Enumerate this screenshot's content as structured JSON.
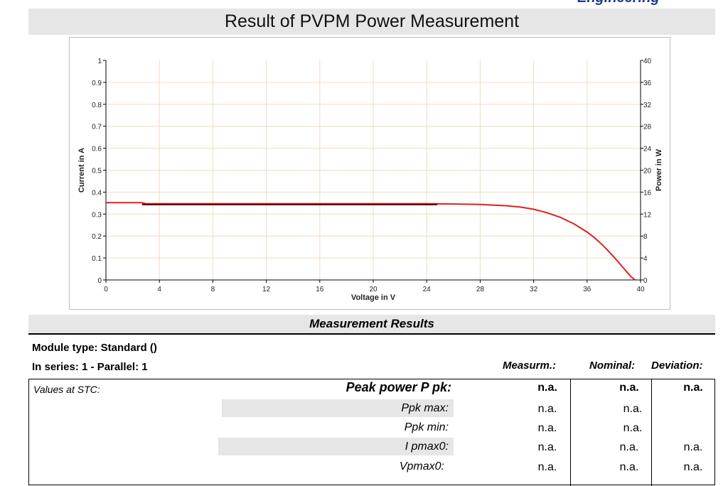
{
  "header": {
    "logo_text": "Engineering"
  },
  "title": "Result of PVPM Power Measurement",
  "chart_data": {
    "type": "line",
    "xlabel": "Voltage in V",
    "ylabel_left": "Current in A",
    "ylabel_right": "Power in W",
    "xlim": [
      0,
      40
    ],
    "ylim_left": [
      0,
      1
    ],
    "ylim_right": [
      0,
      40
    ],
    "x_ticks": [
      "0",
      "4",
      "8",
      "12",
      "16",
      "20",
      "24",
      "28",
      "32",
      "36",
      "40"
    ],
    "y_ticks_left": [
      "0",
      "0.1",
      "0.2",
      "0.3",
      "0.4",
      "0.5",
      "0.6",
      "0.7",
      "0.8",
      "0.9",
      "1"
    ],
    "y_ticks_right": [
      "0",
      "4",
      "8",
      "12",
      "16",
      "20",
      "24",
      "28",
      "32",
      "36",
      "40"
    ],
    "grid": true,
    "series": [
      {
        "color": "#e02020",
        "axis": "left",
        "x": [
          0,
          2.7,
          3.0,
          10,
          20,
          24,
          26,
          28,
          30,
          31,
          32,
          33,
          34,
          35,
          36,
          36.5,
          37,
          37.5,
          38,
          38.5,
          39,
          39.3,
          39.6
        ],
        "y": [
          0.352,
          0.352,
          0.347,
          0.347,
          0.347,
          0.347,
          0.346,
          0.344,
          0.338,
          0.332,
          0.322,
          0.306,
          0.285,
          0.256,
          0.218,
          0.195,
          0.168,
          0.138,
          0.105,
          0.07,
          0.035,
          0.014,
          0.0
        ]
      },
      {
        "color": "#6a1010",
        "axis": "left",
        "x": [
          2.7,
          24.8
        ],
        "y": [
          0.344,
          0.344
        ]
      }
    ]
  },
  "results": {
    "heading": "Measurement Results",
    "module_type": "Module type: Standard ()",
    "series_parallel": "In series: 1  -  Parallel: 1",
    "col_measured": "Measurm.:",
    "col_nominal": "Nominal:",
    "col_deviation": "Deviation:",
    "stc_label": "Values at STC:",
    "rows": [
      {
        "label": "Peak power P pk:",
        "measured": "n.a.",
        "nominal": "n.a.",
        "deviation": "n.a."
      },
      {
        "label": "Ppk max:",
        "measured": "n.a.",
        "nominal": "n.a.",
        "deviation": ""
      },
      {
        "label": "Ppk min:",
        "measured": "n.a.",
        "nominal": "n.a.",
        "deviation": ""
      },
      {
        "label": "I pmax0:",
        "measured": "n.a.",
        "nominal": "n.a.",
        "deviation": "n.a."
      },
      {
        "label": "Vpmax0:",
        "measured": "n.a.",
        "nominal": "n.a.",
        "deviation": "n.a."
      }
    ]
  }
}
